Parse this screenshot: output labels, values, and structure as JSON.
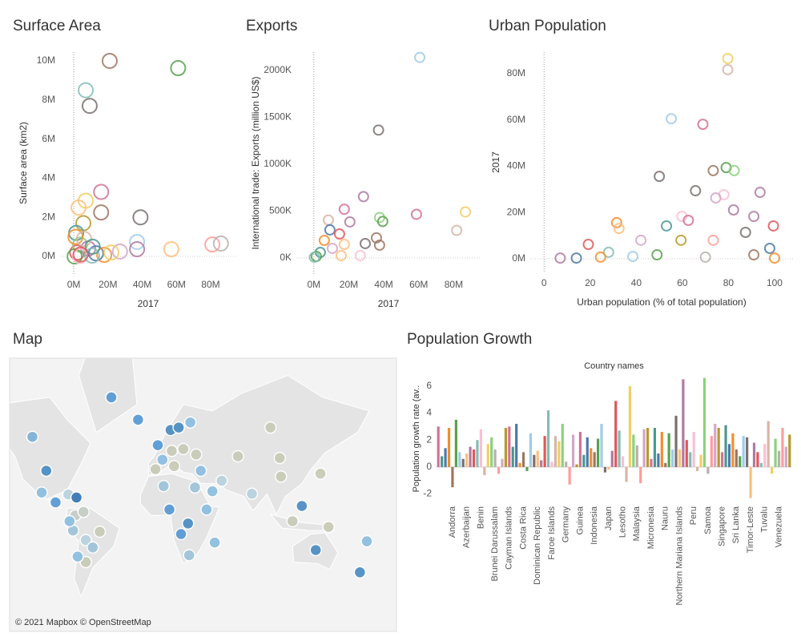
{
  "chart_data": [
    {
      "type": "scatter",
      "title": "Surface Area",
      "xlabel": "2017",
      "ylabel": "Surface area (km2)",
      "x": [
        21000000,
        61000000,
        7000000,
        9300000,
        39000000,
        16000000,
        16000000,
        7000000,
        5600000,
        2800000,
        1400000,
        2000000,
        3700000,
        8400000,
        13000000,
        17800000,
        27000000,
        37000000,
        37000000,
        57000000,
        81000000,
        86000000,
        500000,
        22000000,
        3700000,
        10700000,
        1000000,
        6000000,
        11000000,
        4000000
      ],
      "y": [
        10000000,
        9630000,
        8500000,
        7700000,
        2000000,
        3300000,
        2250000,
        2850000,
        1700000,
        2500000,
        1200000,
        200000,
        600000,
        400000,
        160000,
        80000,
        250000,
        740000,
        370000,
        370000,
        610000,
        660000,
        0,
        200000,
        20000,
        40000,
        1000000,
        900000,
        500000,
        100000
      ],
      "colors": [
        "#9d7660",
        "#59a14f",
        "#86bcb6",
        "#79706e",
        "#79706e",
        "#d37295",
        "#9d7660",
        "#f1ce63",
        "#b6992d",
        "#ffbe7d",
        "#499894",
        "#e15759",
        "#8cd17d",
        "#b07aa1",
        "#4e79a7",
        "#f28e2b",
        "#d4a6c8",
        "#a0cbe8",
        "#b07aa1",
        "#ffbe7d",
        "#ff9d9a",
        "#bab0ac",
        "#59a14f",
        "#f1ce63",
        "#fabfd2",
        "#86bcb6",
        "#f28e2b",
        "#d7b5a6",
        "#499894",
        "#e15759"
      ],
      "xlim": [
        -8000000,
        95000000
      ],
      "ylim": [
        -900000,
        10450000
      ],
      "xticks": [
        {
          "value": 0,
          "label": "0M"
        },
        {
          "value": 20000000,
          "label": "20M"
        },
        {
          "value": 40000000,
          "label": "40M"
        },
        {
          "value": 60000000,
          "label": "60M"
        },
        {
          "value": 80000000,
          "label": "80M"
        }
      ],
      "yticks": [
        {
          "value": 0,
          "label": "0M"
        },
        {
          "value": 2000000,
          "label": "2M"
        },
        {
          "value": 4000000,
          "label": "4M"
        },
        {
          "value": 6000000,
          "label": "6M"
        },
        {
          "value": 8000000,
          "label": "8M"
        },
        {
          "value": 10000000,
          "label": "10M"
        }
      ],
      "grid": false
    },
    {
      "type": "scatter",
      "title": "Exports",
      "xlabel": "2017",
      "ylabel": "International trade: Exports (million US$)",
      "x": [
        60600000,
        37000000,
        28400000,
        17400000,
        37600000,
        39400000,
        58700000,
        86700000,
        81700000,
        35800000,
        37600000,
        29400000,
        26600000,
        20600000,
        8300000,
        9200000,
        14700000,
        17400000,
        6000000,
        3700000,
        1400000,
        300000,
        10600000,
        15600000
      ],
      "y": [
        2140000,
        1365000,
        655000,
        520000,
        432000,
        390000,
        466000,
        492000,
        295000,
        215000,
        137000,
        154000,
        26000,
        385000,
        405000,
        300000,
        256000,
        145000,
        188000,
        60000,
        17000,
        8000,
        103000,
        26000
      ],
      "colors": [
        "#a0cbe8",
        "#79706e",
        "#b07aa1",
        "#d37295",
        "#8cd17d",
        "#59a14f",
        "#d37295",
        "#f1ce63",
        "#d7b5a6",
        "#9d7660",
        "#9d7660",
        "#79706e",
        "#fabfd2",
        "#b07aa1",
        "#d7b5a6",
        "#4e79a7",
        "#e15759",
        "#ffbe7d",
        "#f28e2b",
        "#499894",
        "#59a14f",
        "#86bcb6",
        "#d4a6c8",
        "#ffbe7d"
      ],
      "xlim": [
        -10000000,
        95400000
      ],
      "ylim": [
        -171000,
        2197000
      ],
      "xticks": [
        {
          "value": 0,
          "label": "0M"
        },
        {
          "value": 20000000,
          "label": "20M"
        },
        {
          "value": 40000000,
          "label": "40M"
        },
        {
          "value": 60000000,
          "label": "60M"
        },
        {
          "value": 80000000,
          "label": "80M"
        }
      ],
      "yticks": [
        {
          "value": 0,
          "label": "0K"
        },
        {
          "value": 500000,
          "label": "500K"
        },
        {
          "value": 1000000,
          "label": "1000K"
        },
        {
          "value": 1500000,
          "label": "1500K"
        },
        {
          "value": 2000000,
          "label": "2000K"
        }
      ],
      "grid": false
    },
    {
      "type": "scatter",
      "title": "Urban Population",
      "xlabel": "Urban population (% of total population)",
      "ylabel": "2017",
      "x": [
        79.7,
        79.7,
        55.2,
        68.9,
        50,
        73.4,
        79,
        82.5,
        65.7,
        93.7,
        78,
        74.5,
        82.2,
        91,
        99.5,
        31.5,
        32.5,
        53.1,
        59.8,
        62.6,
        19.2,
        28,
        42,
        59.4,
        73.4,
        87.4,
        97.9,
        7,
        14,
        24.5,
        38.5,
        49,
        70,
        91,
        100
      ],
      "y": [
        86500000,
        81700000,
        60500000,
        58100000,
        35600000,
        38100000,
        39400000,
        38100000,
        29400000,
        28700000,
        27700000,
        26300000,
        21100000,
        18300000,
        14200000,
        15600000,
        13100000,
        14200000,
        18300000,
        16600000,
        6200000,
        2800000,
        8000000,
        8000000,
        8000000,
        11400000,
        4500000,
        300000,
        300000,
        700000,
        1000000,
        1700000,
        700000,
        1700000,
        300000
      ],
      "colors": [
        "#f1ce63",
        "#d7b5a6",
        "#a0cbe8",
        "#d37295",
        "#79706e",
        "#9d7660",
        "#59a14f",
        "#8cd17d",
        "#79706e",
        "#b07aa1",
        "#fabfd2",
        "#d4a6c8",
        "#b07aa1",
        "#b07aa1",
        "#e15759",
        "#f28e2b",
        "#ffbe7d",
        "#499894",
        "#fabfd2",
        "#d37295",
        "#e15759",
        "#86bcb6",
        "#d4a6c8",
        "#b6992d",
        "#ff9d9a",
        "#79706e",
        "#4e79a7",
        "#b07aa1",
        "#4e79a7",
        "#f28e2b",
        "#a0cbe8",
        "#59a14f",
        "#bab0ac",
        "#9d7660",
        "#f28e2b"
      ],
      "xlim": [
        -6,
        108
      ],
      "ylim": [
        -5900000,
        89300000
      ],
      "xticks": [
        0,
        20,
        40,
        60,
        80,
        100
      ],
      "yticks": [
        {
          "value": 0,
          "label": "0M"
        },
        {
          "value": 20000000,
          "label": "20M"
        },
        {
          "value": 40000000,
          "label": "40M"
        },
        {
          "value": 60000000,
          "label": "60M"
        },
        {
          "value": 80000000,
          "label": "80M"
        }
      ],
      "grid": false
    },
    {
      "type": "map",
      "title": "Map",
      "attribution": "© 2021 Mapbox © OpenStreetMap",
      "lon": [
        -110,
        -98,
        -42,
        -102,
        -79,
        -90,
        -73,
        -66,
        -72,
        -75,
        -52,
        -64,
        -64,
        -71,
        -58,
        -78,
        -19,
        -2,
        2,
        -4,
        10,
        9,
        16,
        26,
        95,
        20,
        12,
        31,
        35,
        30,
        3,
        8,
        40,
        24,
        18,
        25,
        47,
        45,
        53,
        67,
        79,
        104,
        103,
        138,
        114,
        122,
        145,
        134,
        172,
        178
      ],
      "lat": [
        58,
        39,
        72,
        23,
        21.5,
        15,
        4,
        7,
        19,
        -9,
        -10,
        -17,
        -34,
        -30,
        -23,
        -1,
        65,
        54,
        46,
        40,
        51,
        61,
        62,
        64,
        62,
        52,
        42,
        49,
        39,
        27,
        28,
        9,
        9,
        -3,
        -12,
        -29,
        -19,
        24,
        32,
        48,
        22,
        35,
        47,
        37,
        -1,
        12,
        -6,
        -25,
        -41,
        -18
      ],
      "colors": [
        "#7fb3d9",
        "#4f8fc4",
        "#5b9bd5",
        "#8ebfe0",
        "#b9d3de",
        "#5b9bd5",
        "#c5cdc6",
        "#c5cdc6",
        "#3a78b5",
        "#9fc4d9",
        "#c9cbb8",
        "#b9d3de",
        "#c9cbb8",
        "#8ebfe0",
        "#9fc4d9",
        "#8ebfe0",
        "#5b9bd5",
        "#5b9bd5",
        "#8ebfe0",
        "#c9cbb8",
        "#c9cbb8",
        "#4f8fc4",
        "#4f8fc4",
        "#8ebfe0",
        "#c9cbb8",
        "#c9cbb8",
        "#c9cbb8",
        "#c9cbb8",
        "#8ebfe0",
        "#9fc4d9",
        "#9fc4d9",
        "#5b9bd5",
        "#8ebfe0",
        "#4f8fc4",
        "#5b9bd5",
        "#9fc4d9",
        "#8ebfe0",
        "#8ebfe0",
        "#b9d3de",
        "#c9cbb8",
        "#b9d3de",
        "#c9cbb8",
        "#c9cbb8",
        "#c9cbb8",
        "#c9cbb8",
        "#4f8fc4",
        "#c9cbb8",
        "#4f8fc4",
        "#4f8fc4",
        "#8ebfe0"
      ]
    },
    {
      "type": "bar",
      "title": "Population Growth",
      "header": "Country names",
      "ylabel": "Population growth rate (av..",
      "categories": [
        null,
        null,
        null,
        null,
        "Andorra",
        null,
        null,
        null,
        "Azerbaijan",
        null,
        null,
        null,
        "Benin",
        null,
        null,
        null,
        "Brunei Darussalam",
        null,
        null,
        null,
        "Cayman Islands",
        null,
        null,
        null,
        "Costa Rica",
        null,
        null,
        null,
        "Dominican Republic",
        null,
        null,
        null,
        "Faroe Islands",
        null,
        null,
        null,
        "Germany",
        null,
        null,
        null,
        "Guinea",
        null,
        null,
        null,
        "Indonesia",
        null,
        null,
        null,
        "Japan",
        null,
        null,
        null,
        "Lesotho",
        null,
        null,
        null,
        "Malaysia",
        null,
        null,
        null,
        "Micronesia",
        null,
        null,
        null,
        "Nauru",
        null,
        null,
        null,
        "Northern Mariana Islands",
        null,
        null,
        null,
        "Peru",
        null,
        null,
        null,
        "Samoa",
        null,
        null,
        null,
        "Singapore",
        null,
        null,
        null,
        "Sri Lanka",
        null,
        null,
        null,
        "Timor-Leste",
        null,
        null,
        null,
        "Tuvalu",
        null,
        null,
        null,
        "Venezuela",
        null,
        null,
        null
      ],
      "values": [
        3.0,
        0.8,
        1.4,
        2.9,
        -1.5,
        3.5,
        1.1,
        0.6,
        1.0,
        1.5,
        1.3,
        2.0,
        2.8,
        -0.6,
        1.7,
        2.2,
        1.3,
        -0.5,
        0.6,
        2.9,
        3.0,
        1.5,
        3.2,
        0.3,
        1.1,
        -0.3,
        2.5,
        0.9,
        1.2,
        0.5,
        2.3,
        4.2,
        0.4,
        2.3,
        1.9,
        3.2,
        0.4,
        -1.3,
        2.4,
        0.2,
        2.6,
        0.9,
        2.2,
        1.4,
        1.1,
        2.1,
        3.2,
        -0.4,
        -0.2,
        1.2,
        4.9,
        2.7,
        0.8,
        -1.1,
        6.0,
        2.4,
        1.6,
        -1.2,
        2.8,
        2.9,
        0.6,
        2.9,
        1.0,
        2.6,
        0.3,
        2.5,
        1.3,
        3.8,
        1.3,
        6.5,
        2.0,
        1.1,
        2.6,
        -0.3,
        0.9,
        6.6,
        -0.5,
        2.3,
        3.2,
        2.9,
        1.1,
        3.1,
        1.7,
        2.5,
        1.3,
        0.8,
        2.3,
        2.2,
        -2.3,
        1.8,
        1.1,
        0.3,
        1.7,
        3.4,
        -0.5,
        2.1,
        1.2,
        2.9,
        1.5,
        2.4
      ],
      "colors": [
        "#d37295",
        "#499894",
        "#4e79a7",
        "#f28e2b",
        "#9d7660",
        "#59a14f",
        "#a0cbe8",
        "#79706e",
        "#ffbe7d",
        "#b07aa1",
        "#e15759",
        "#86bcb6",
        "#fabfd2",
        "#d7b5a6",
        "#f1ce63",
        "#8cd17d",
        "#bab0ac",
        "#ff9d9a",
        "#d4a6c8",
        "#b6992d"
      ],
      "ylim": [
        -2.5,
        6.7
      ],
      "yticks": [
        -2,
        0,
        2,
        4,
        6
      ],
      "grid": false
    }
  ]
}
